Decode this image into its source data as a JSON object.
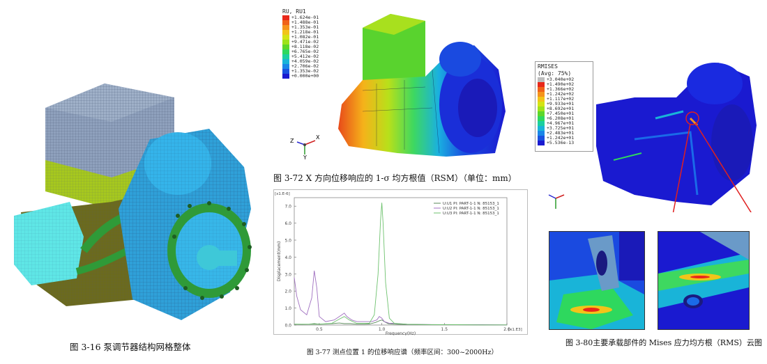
{
  "captions": {
    "fig_316": "图 3-16 泵调节器结构网格整体",
    "fig_372": "图 3-72 X 方向位移响应的 1-σ 均方根值（RSM）（单位：mm）",
    "fig_377": "图 3-77 测点位置 1 的位移响应谱（频率区间：300~2000Hz）",
    "fig_380": "图 3-80主要承载部件的 Mises 应力均方根（RMS）云图"
  },
  "legend_ru": {
    "title": "RU, RU1",
    "entries": [
      "+1.624e-01",
      "+1.488e-01",
      "+1.353e-01",
      "+1.218e-01",
      "+1.082e-01",
      "+9.471e-02",
      "+8.118e-02",
      "+6.765e-02",
      "+5.412e-02",
      "+4.059e-02",
      "+2.706e-02",
      "+1.353e-02",
      "+0.000e+00"
    ],
    "colors": [
      "#e8281a",
      "#f0621a",
      "#f5941c",
      "#f2c419",
      "#d4e414",
      "#9ee21a",
      "#5cd72a",
      "#2ed85e",
      "#1bd0a0",
      "#19b4d8",
      "#1a86e8",
      "#1a52e0",
      "#1a1ad0"
    ]
  },
  "legend_mises": {
    "title": "RMISES",
    "subtitle": "(Avg: 75%)",
    "entries": [
      "+3.040e+02",
      "+1.490e+02",
      "+1.366e+02",
      "+1.242e+02",
      "+1.117e+02",
      "+9.933e+01",
      "+8.692e+01",
      "+7.450e+01",
      "+6.208e+01",
      "+4.967e+01",
      "+3.725e+01",
      "+2.483e+01",
      "+1.242e+01",
      "+5.536e-13"
    ],
    "colors": [
      "#bdbdbd",
      "#e8281a",
      "#f0621a",
      "#f5941c",
      "#f2c419",
      "#d4e414",
      "#9ee21a",
      "#5cd72a",
      "#2ed85e",
      "#1bd0a0",
      "#19b4d8",
      "#1a86e8",
      "#1a52e0",
      "#1a1ad0"
    ]
  },
  "triad": {
    "x": "X",
    "y": "Y",
    "z": "Z"
  },
  "chart_data": {
    "type": "line",
    "x_multiplier_label": "[x1.E3]",
    "y_multiplier_label": "[x1.E-6]",
    "xlabel": "Frequency(Hz)",
    "ylabel": "Displacement(mm)",
    "xlim": [
      0.3,
      2.0
    ],
    "ylim": [
      0,
      7.5
    ],
    "x_ticks": [
      "0.5",
      "1.0",
      "1.5",
      "2.0"
    ],
    "y_ticks": [
      "0.0",
      "1.0",
      "2.0",
      "3.0",
      "4.0",
      "5.0",
      "6.0",
      "7.0"
    ],
    "series": [
      {
        "name": "U:U1 PI: PART-1-1 N: 85153_1",
        "color": "#5a8a5a",
        "x": [
          0.3,
          0.36,
          0.42,
          0.46,
          0.5,
          0.55,
          0.6,
          0.66,
          0.7,
          0.75,
          0.8,
          0.86,
          0.9,
          0.95,
          0.98,
          1.0,
          1.02,
          1.05,
          1.1,
          1.2,
          1.4,
          1.6,
          1.8,
          2.0
        ],
        "y": [
          0.05,
          0.04,
          0.05,
          0.08,
          0.05,
          0.06,
          0.08,
          0.12,
          0.08,
          0.08,
          0.05,
          0.05,
          0.06,
          0.15,
          0.25,
          0.3,
          0.2,
          0.08,
          0.05,
          0.03,
          0.02,
          0.02,
          0.01,
          0.01
        ]
      },
      {
        "name": "U:U2 PI: PART-1-1 N: 85153_1",
        "color": "#a070c0",
        "x": [
          0.3,
          0.32,
          0.35,
          0.4,
          0.44,
          0.46,
          0.48,
          0.5,
          0.55,
          0.62,
          0.68,
          0.7,
          0.72,
          0.76,
          0.8,
          0.86,
          0.92,
          0.96,
          0.98,
          1.0,
          1.02,
          1.06,
          1.1,
          1.2,
          1.4,
          1.6,
          1.8,
          2.0
        ],
        "y": [
          2.8,
          1.7,
          0.9,
          0.6,
          1.6,
          3.2,
          2.2,
          0.5,
          0.2,
          0.3,
          0.6,
          0.7,
          0.5,
          0.3,
          0.2,
          0.2,
          0.2,
          0.3,
          0.5,
          0.4,
          0.2,
          0.1,
          0.1,
          0.05,
          0.03,
          0.02,
          0.02,
          0.01
        ]
      },
      {
        "name": "U:U3 PI: PART-1-1 N: 85153_1",
        "color": "#6ec26e",
        "x": [
          0.3,
          0.4,
          0.5,
          0.6,
          0.66,
          0.7,
          0.74,
          0.8,
          0.9,
          0.94,
          0.97,
          0.99,
          1.0,
          1.01,
          1.03,
          1.06,
          1.1,
          1.2,
          1.4,
          1.6,
          1.8,
          2.0
        ],
        "y": [
          0.05,
          0.05,
          0.05,
          0.1,
          0.35,
          0.5,
          0.3,
          0.1,
          0.1,
          0.6,
          3.0,
          6.2,
          7.2,
          6.0,
          2.5,
          0.4,
          0.1,
          0.05,
          0.02,
          0.02,
          0.01,
          0.01
        ]
      }
    ]
  }
}
